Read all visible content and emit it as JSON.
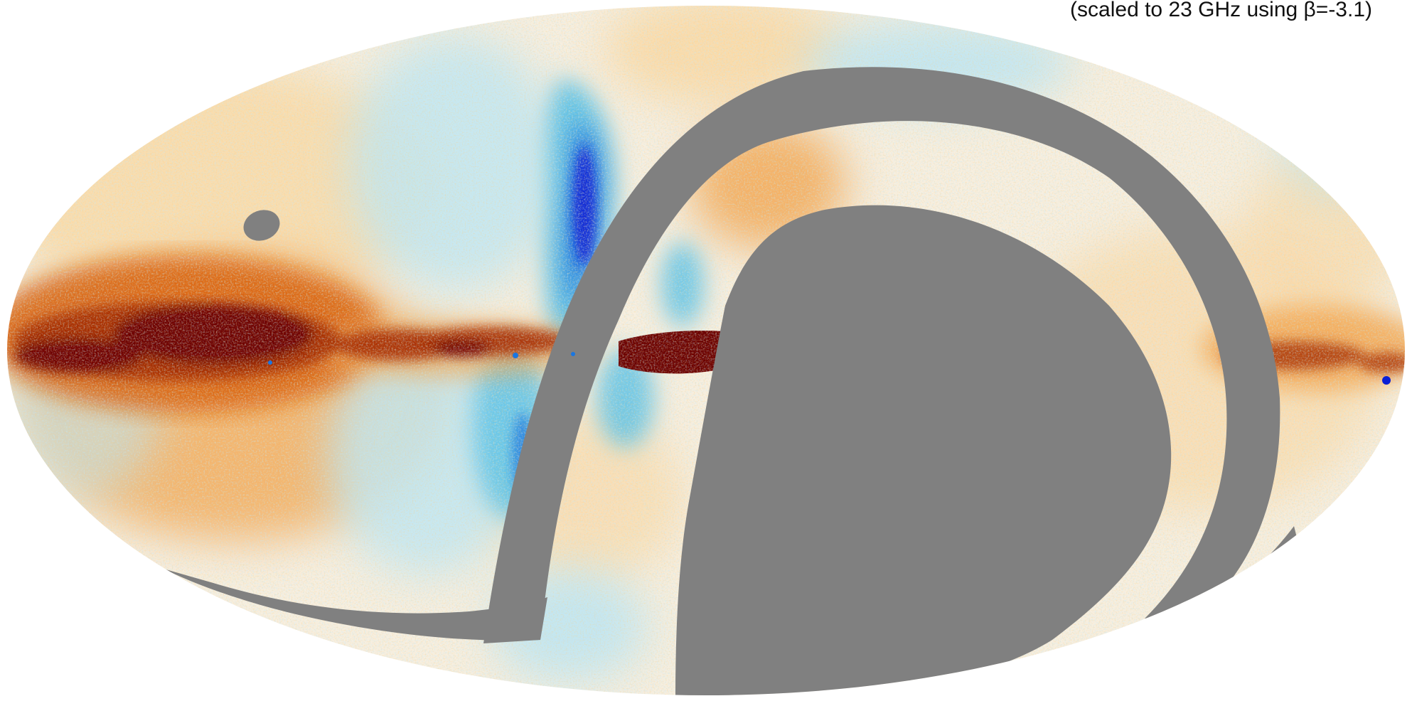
{
  "map": {
    "caption": "(scaled to 23 GHz using β=-3.1)",
    "projection": "mollweide",
    "colors": {
      "background": "#ffffff",
      "mask": "#808080",
      "neutral": "#f7efe0",
      "warm_light": "#f9d9a6",
      "warm": "#f2a24a",
      "warm_strong": "#d9620f",
      "hot": "#a52a05",
      "hottest": "#6b0000",
      "cool_light": "#bfe6f2",
      "cool": "#52bfe8",
      "cool_strong": "#1a76e0",
      "coldest": "#0a1fd6"
    },
    "features": [
      "galactic-plane-emission",
      "north-polar-spur",
      "masked-regions",
      "point-source-mask"
    ]
  }
}
